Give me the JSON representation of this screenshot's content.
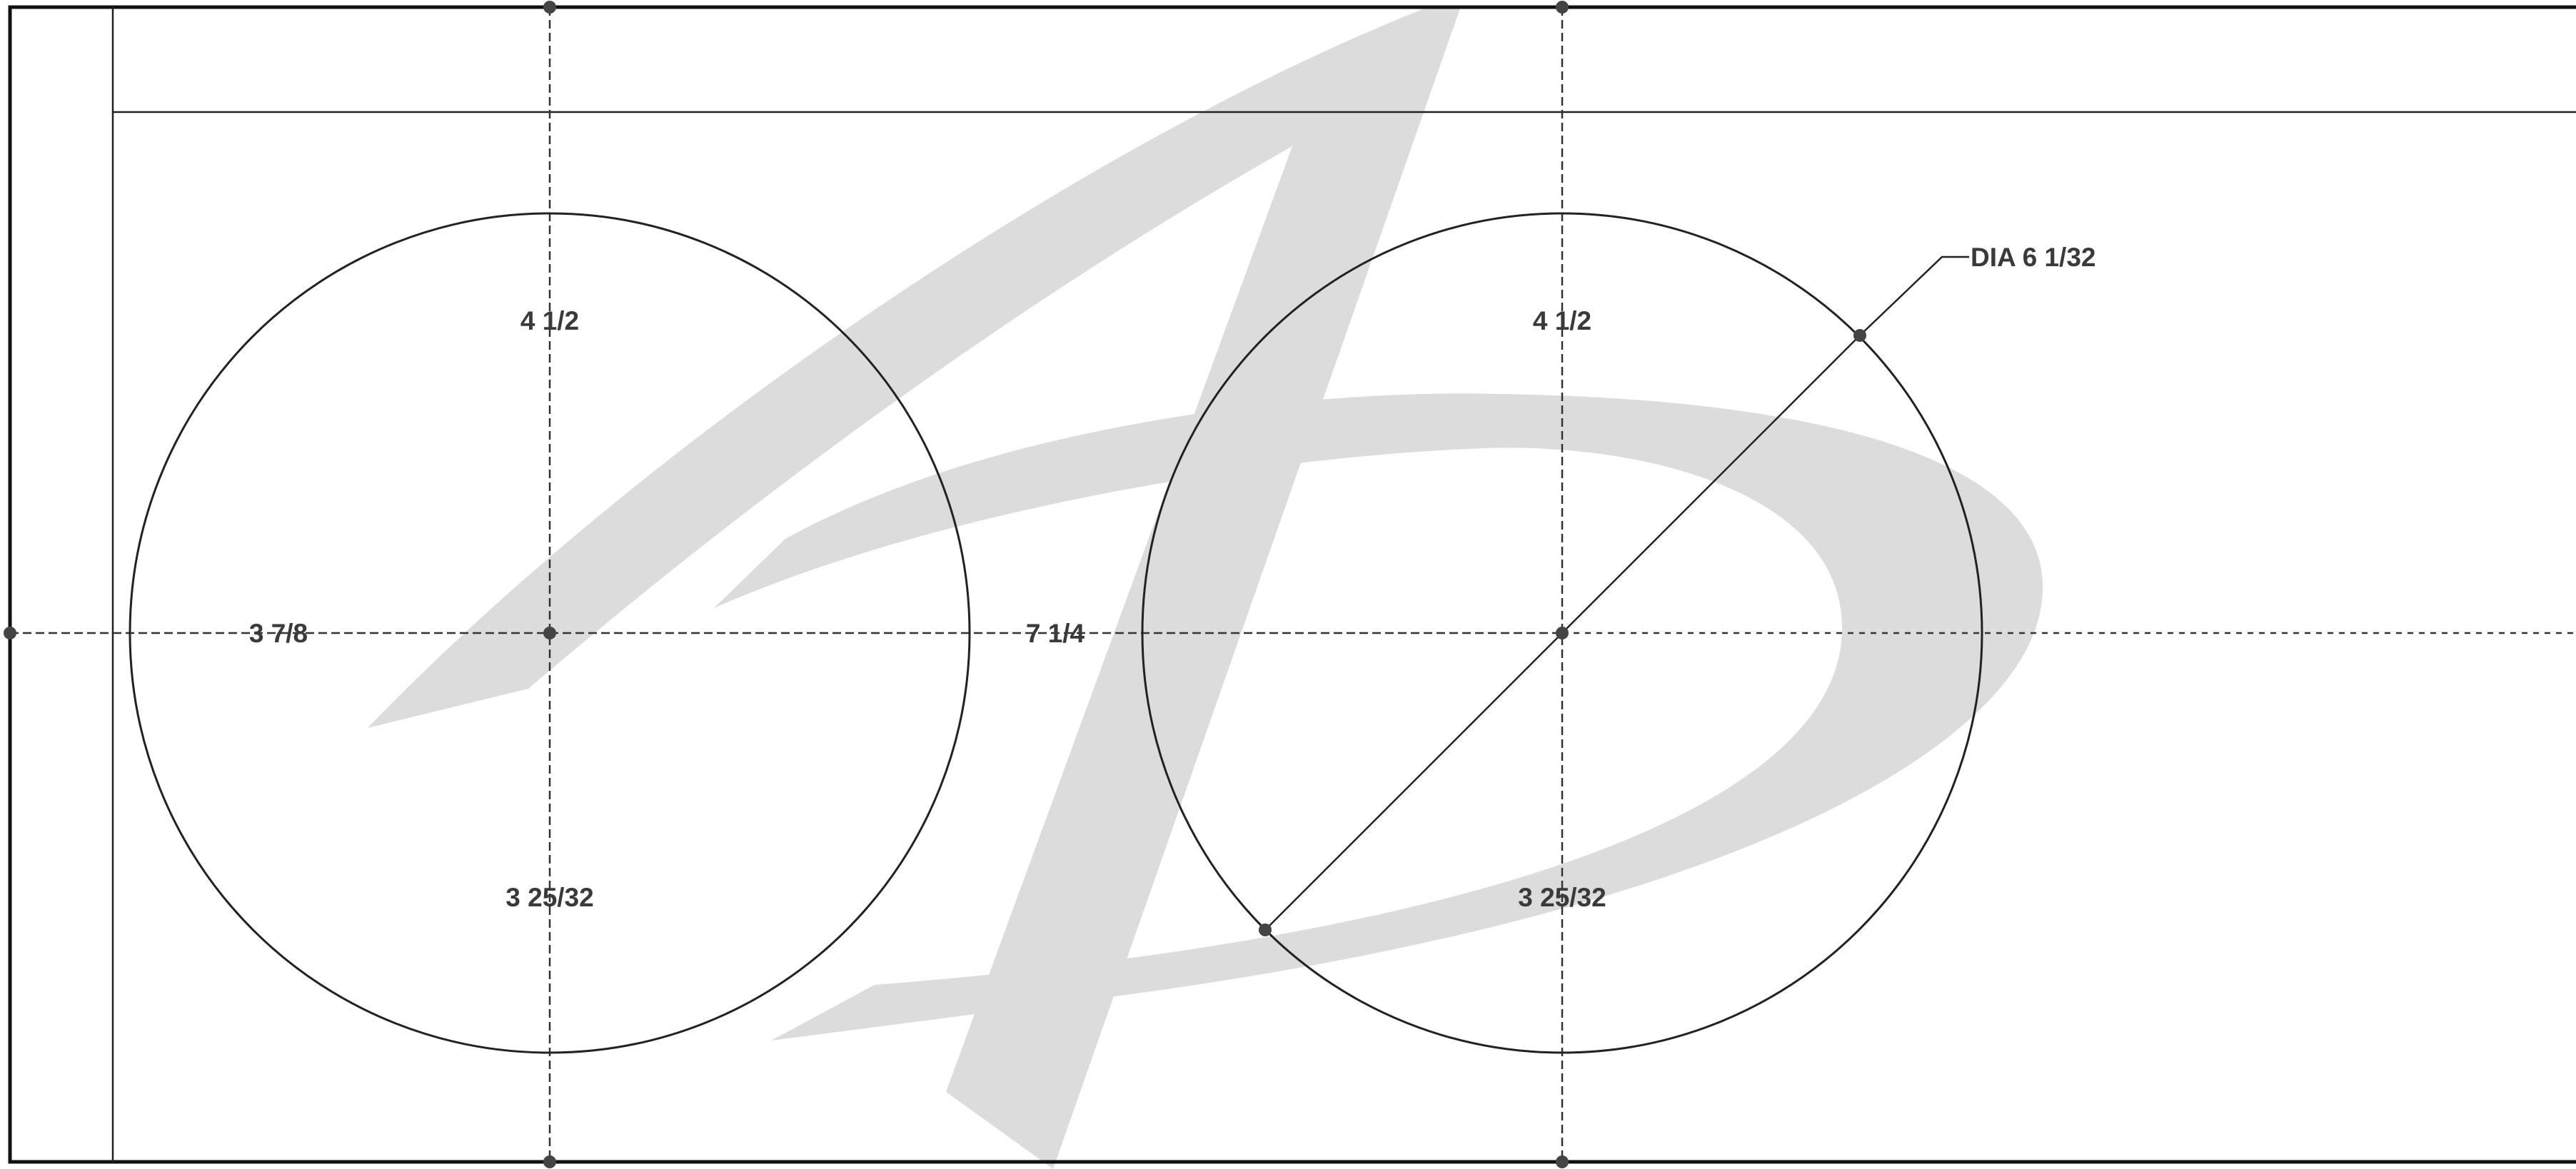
{
  "drawing": {
    "holes": [
      {
        "top_label": "4 1/2",
        "bottom_label": "3 25/32"
      },
      {
        "top_label": "4 1/2",
        "bottom_label": "3 25/32"
      }
    ],
    "horizontal_dims": {
      "edge_to_first_hole": "3 7/8",
      "hole_spacing": "7 1/4"
    },
    "callout": {
      "label": "DIA 6 1/32"
    },
    "colors": {
      "line": "#222222",
      "watermark": "#dcdcdc",
      "text": "#3a3a3a"
    }
  }
}
